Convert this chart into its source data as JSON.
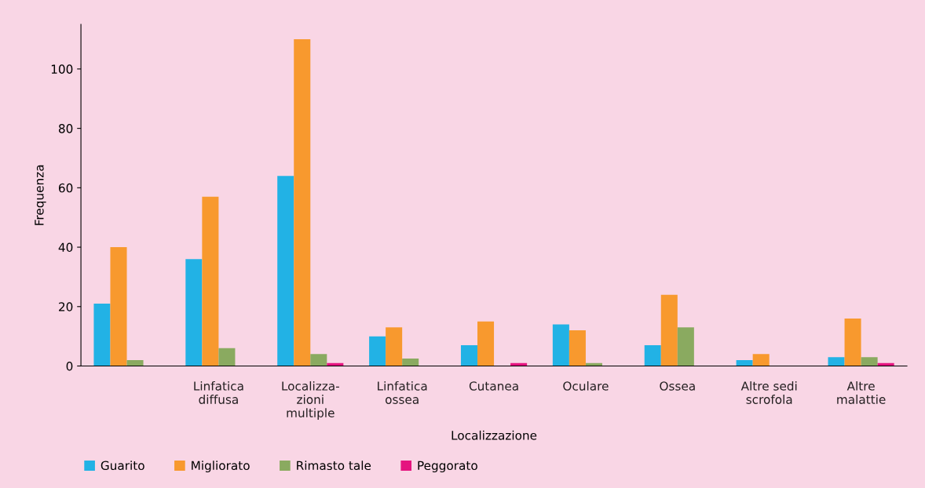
{
  "chart_data": {
    "type": "bar",
    "xlabel": "Localizzazione",
    "ylabel": "Frequenza",
    "categories": [
      null,
      "Linfatica\ndiffusa",
      "Localizza-\nzioni\nmultiple",
      "Linfatica\nossea",
      "Cutanea",
      "Oculare",
      "Ossea",
      "Altre sedi\nscrofola",
      "Altre\nmalattie"
    ],
    "series": [
      {
        "name": "Guarito",
        "color": "#22b2e5",
        "values": [
          21,
          36,
          64,
          10,
          7,
          14,
          7,
          2,
          3
        ]
      },
      {
        "name": "Migliorato",
        "color": "#f8992e",
        "values": [
          40,
          57,
          110,
          13,
          15,
          12,
          24,
          4,
          16
        ]
      },
      {
        "name": "Rimasto tale",
        "color": "#8aaa60",
        "values": [
          2,
          6,
          4,
          2.5,
          null,
          1,
          13,
          null,
          3
        ]
      },
      {
        "name": "Peggorato",
        "color": "#e5147f",
        "values": [
          null,
          null,
          1,
          null,
          1,
          null,
          null,
          null,
          1
        ]
      }
    ],
    "ylim": [
      0,
      115
    ],
    "yticks": [
      0,
      20,
      40,
      60,
      80,
      100
    ],
    "grid": false,
    "legend": "bottom left"
  }
}
